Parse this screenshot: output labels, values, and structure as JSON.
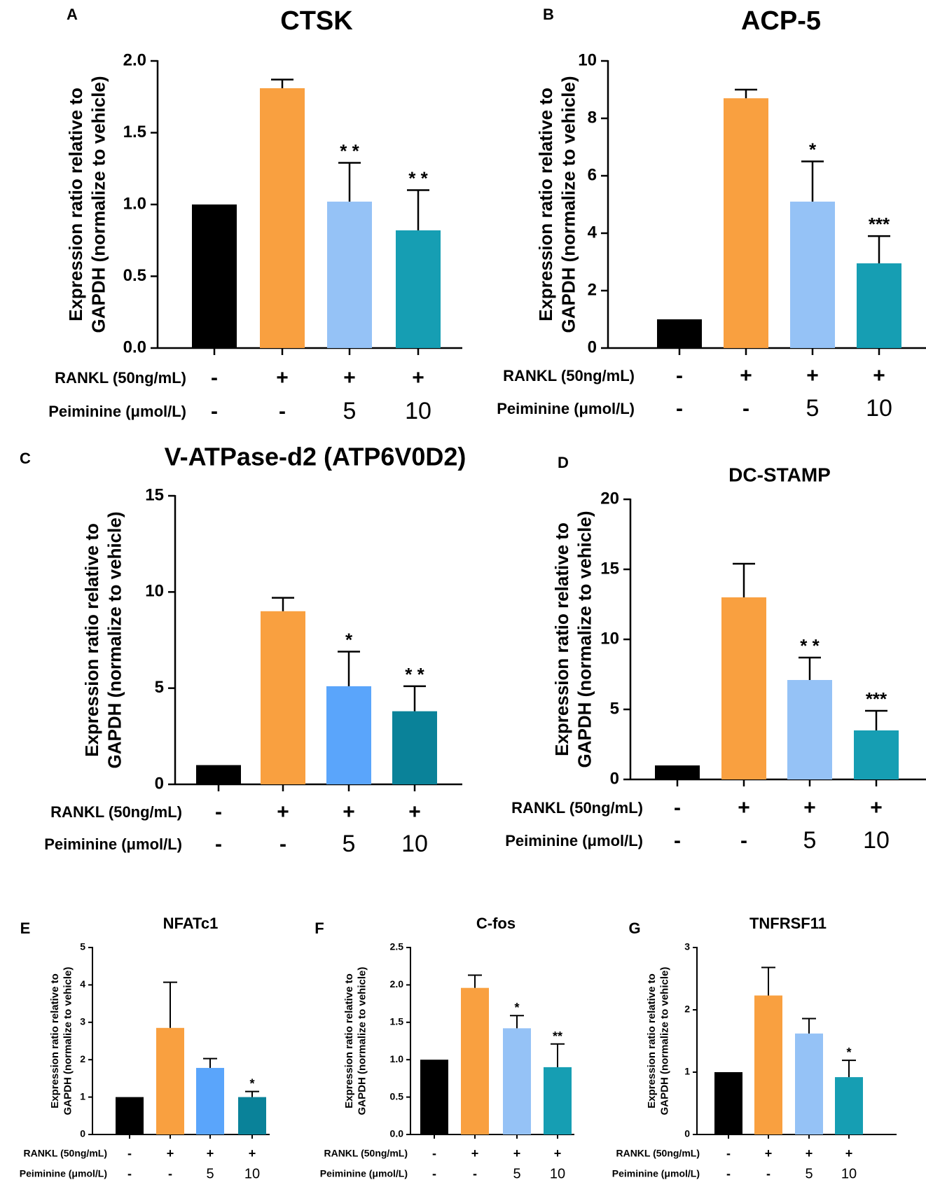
{
  "figure": {
    "row_labels": [
      "RANKL (50ng/mL)",
      "Peiminine (μmol/L)"
    ]
  },
  "chart_data": [
    {
      "panel": "A",
      "type": "bar",
      "title": "CTSK",
      "ylabel": [
        "Expression ratio relative to",
        "GAPDH (normalize to vehicle)"
      ],
      "ylim": [
        0,
        2.0
      ],
      "yticks": [
        "0.0",
        "0.5",
        "1.0",
        "1.5",
        "2.0"
      ],
      "categories": [
        "Vehicle",
        "RANKL",
        "RANKL + Peiminine 5",
        "RANKL + Peiminine 10"
      ],
      "values": [
        1.0,
        1.81,
        1.02,
        0.82
      ],
      "errors": [
        0,
        0.06,
        0.27,
        0.28
      ],
      "significance": [
        "",
        "",
        "* *",
        "* *"
      ],
      "colors": [
        "#000000",
        "#f9a040",
        "#95c2f6",
        "#169eb3"
      ],
      "rankl": [
        "-",
        "+",
        "+",
        "+"
      ],
      "peiminine": [
        "-",
        "-",
        "5",
        "10"
      ]
    },
    {
      "panel": "B",
      "type": "bar",
      "title": "ACP-5",
      "ylabel": [
        "Expression ratio relative to",
        "GAPDH (normalize to vehicle)"
      ],
      "ylim": [
        0,
        10
      ],
      "yticks": [
        "0",
        "2",
        "4",
        "6",
        "8",
        "10"
      ],
      "categories": [
        "Vehicle",
        "RANKL",
        "RANKL + Peiminine 5",
        "RANKL + Peiminine 10"
      ],
      "values": [
        1.0,
        8.7,
        5.1,
        2.95
      ],
      "errors": [
        0,
        0.3,
        1.4,
        0.95
      ],
      "significance": [
        "",
        "",
        "*",
        "***"
      ],
      "colors": [
        "#000000",
        "#f9a040",
        "#95c2f6",
        "#169eb3"
      ],
      "rankl": [
        "-",
        "+",
        "+",
        "+"
      ],
      "peiminine": [
        "-",
        "-",
        "5",
        "10"
      ]
    },
    {
      "panel": "C",
      "type": "bar",
      "title": "V-ATPase-d2 (ATP6V0D2)",
      "ylabel": [
        "Expression ratio relative to",
        "GAPDH (normalize to vehicle)"
      ],
      "ylim": [
        0,
        15
      ],
      "yticks": [
        "0",
        "5",
        "10",
        "15"
      ],
      "categories": [
        "Vehicle",
        "RANKL",
        "RANKL + Peiminine 5",
        "RANKL + Peiminine 10"
      ],
      "values": [
        1.0,
        9.0,
        5.1,
        3.8
      ],
      "errors": [
        0,
        0.7,
        1.8,
        1.3
      ],
      "significance": [
        "",
        "",
        "*",
        "* *"
      ],
      "colors": [
        "#000000",
        "#f9a040",
        "#5aa5fb",
        "#0a8299"
      ],
      "rankl": [
        "-",
        "+",
        "+",
        "+"
      ],
      "peiminine": [
        "-",
        "-",
        "5",
        "10"
      ]
    },
    {
      "panel": "D",
      "type": "bar",
      "title": "DC-STAMP",
      "ylabel": [
        "Expression ratio relative to",
        "GAPDH (normalize to vehicle)"
      ],
      "ylim": [
        0,
        20
      ],
      "yticks": [
        "0",
        "5",
        "10",
        "15",
        "20"
      ],
      "categories": [
        "Vehicle",
        "RANKL",
        "RANKL + Peiminine 5",
        "RANKL + Peiminine 10"
      ],
      "values": [
        1.0,
        13.0,
        7.1,
        3.5
      ],
      "errors": [
        0,
        2.4,
        1.6,
        1.4
      ],
      "significance": [
        "",
        "",
        "* *",
        "***"
      ],
      "colors": [
        "#000000",
        "#f9a040",
        "#95c2f6",
        "#169eb3"
      ],
      "rankl": [
        "-",
        "+",
        "+",
        "+"
      ],
      "peiminine": [
        "-",
        "-",
        "5",
        "10"
      ]
    },
    {
      "panel": "E",
      "type": "bar",
      "title": "NFATc1",
      "ylabel": [
        "Expression ratio relative to",
        "GAPDH (normalize to vehicle)"
      ],
      "ylim": [
        0,
        5
      ],
      "yticks": [
        "0",
        "1",
        "2",
        "3",
        "4",
        "5"
      ],
      "categories": [
        "Vehicle",
        "RANKL",
        "RANKL + Peiminine 5",
        "RANKL + Peiminine 10"
      ],
      "values": [
        1.0,
        2.85,
        1.78,
        1.0
      ],
      "errors": [
        0,
        1.22,
        0.25,
        0.15
      ],
      "significance": [
        "",
        "",
        "",
        "*"
      ],
      "colors": [
        "#000000",
        "#f9a040",
        "#5aa5fb",
        "#0a8299"
      ],
      "rankl": [
        "-",
        "+",
        "+",
        "+"
      ],
      "peiminine": [
        "-",
        "-",
        "5",
        "10"
      ]
    },
    {
      "panel": "F",
      "type": "bar",
      "title": "C-fos",
      "ylabel": [
        "Expression ratio relative to",
        "GAPDH (normalize to vehicle)"
      ],
      "ylim": [
        0,
        2.5
      ],
      "yticks": [
        "0.0",
        "0.5",
        "1.0",
        "1.5",
        "2.0",
        "2.5"
      ],
      "categories": [
        "Vehicle",
        "RANKL",
        "RANKL + Peiminine 5",
        "RANKL + Peiminine 10"
      ],
      "values": [
        1.0,
        1.96,
        1.42,
        0.9
      ],
      "errors": [
        0,
        0.17,
        0.17,
        0.31
      ],
      "significance": [
        "",
        "",
        "*",
        "**"
      ],
      "colors": [
        "#000000",
        "#f9a040",
        "#95c2f6",
        "#169eb3"
      ],
      "rankl": [
        "-",
        "+",
        "+",
        "+"
      ],
      "peiminine": [
        "-",
        "-",
        "5",
        "10"
      ]
    },
    {
      "panel": "G",
      "type": "bar",
      "title": "TNFRSF11",
      "ylabel": [
        "Expression ratio relative to",
        "GAPDH (normalize to vehicle)"
      ],
      "ylim": [
        0,
        3
      ],
      "yticks": [
        "0",
        "1",
        "2",
        "3"
      ],
      "categories": [
        "Vehicle",
        "RANKL",
        "RANKL + Peiminine 5",
        "RANKL + Peiminine 10"
      ],
      "values": [
        1.0,
        2.23,
        1.62,
        0.92
      ],
      "errors": [
        0,
        0.45,
        0.24,
        0.27
      ],
      "significance": [
        "",
        "",
        "",
        "*"
      ],
      "colors": [
        "#000000",
        "#f9a040",
        "#95c2f6",
        "#169eb3"
      ],
      "rankl": [
        "-",
        "+",
        "+",
        "+"
      ],
      "peiminine": [
        "-",
        "-",
        "5",
        "10"
      ]
    }
  ]
}
